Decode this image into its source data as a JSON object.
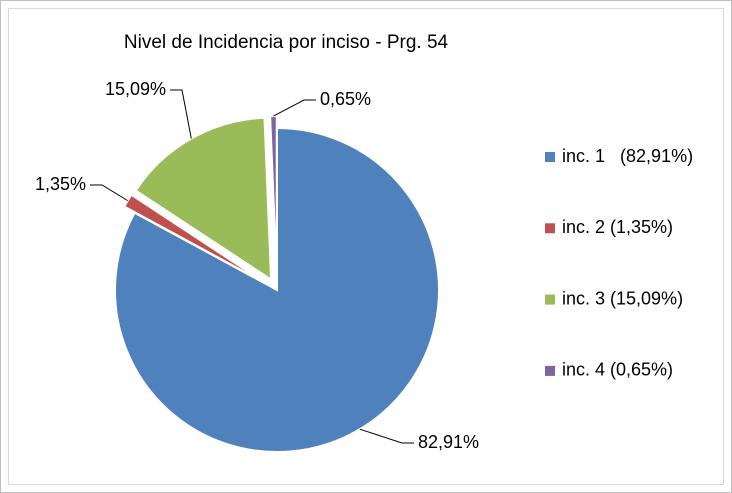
{
  "chart_data": {
    "type": "pie",
    "title": "Nivel de Incidencia por inciso - Prg. 54",
    "categories": [
      "inc. 1   (82,91%)",
      "inc. 2 (1,35%)",
      "inc. 3 (15,09%)",
      "inc. 4 (0,65%)"
    ],
    "values": [
      82.91,
      1.35,
      15.09,
      0.65
    ],
    "value_labels": [
      "82,91%",
      "1,35%",
      "15,09%",
      "0,65%"
    ],
    "colors": [
      "#4f81bd",
      "#c0504d",
      "#9bbb59",
      "#8064a2"
    ],
    "legend": "right"
  }
}
